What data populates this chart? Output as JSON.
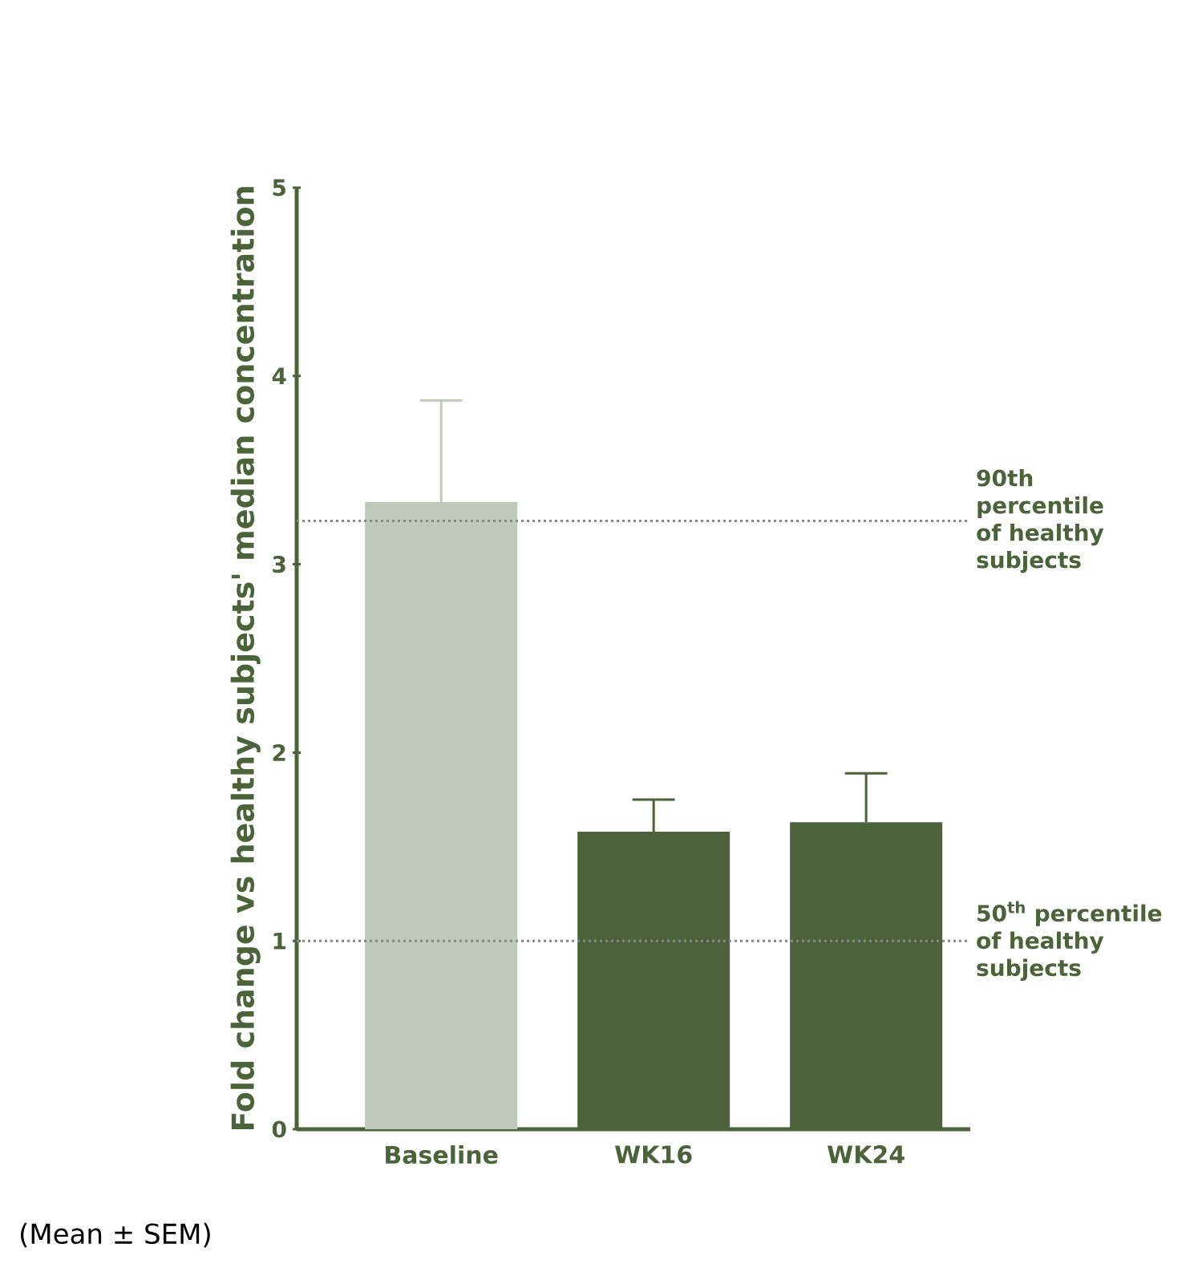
{
  "chart_data": {
    "type": "bar",
    "ylabel": "Fold change vs healthy subjects' median concentration",
    "categories": [
      "Baseline",
      "WK16",
      "WK24"
    ],
    "values": [
      3.33,
      1.58,
      1.63
    ],
    "errors": [
      [
        3.33,
        3.87
      ],
      [
        1.58,
        1.75
      ],
      [
        1.63,
        1.89
      ]
    ],
    "colors": [
      "#c0c8b8",
      "#4b623a",
      "#4b623a"
    ],
    "ylim": [
      0,
      5
    ],
    "yticks": [
      0,
      1,
      2,
      3,
      4,
      5
    ],
    "ref_lines": [
      {
        "axis": "y",
        "value": 3.23,
        "label": "90th percentile of healthy subjects",
        "color": "#888888",
        "line_style": "dotted"
      },
      {
        "axis": "y",
        "value": 1.0,
        "label": "50$^{th}$ percentile of healthy subjects",
        "color": "#888888",
        "line_style": "dotted"
      }
    ],
    "annotations": [
      "(Mean ± SEM)"
    ]
  }
}
